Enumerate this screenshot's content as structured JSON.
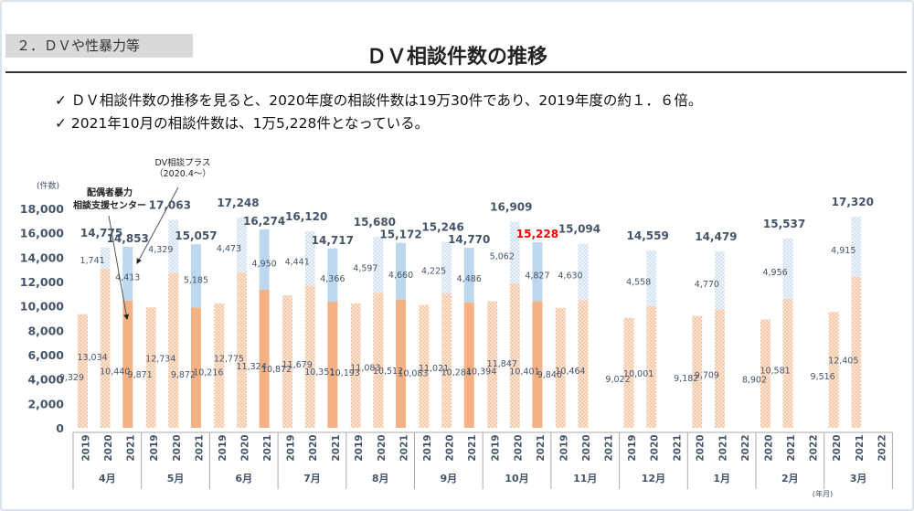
{
  "header": {
    "section": "２．ＤＶや性暴力等",
    "title": "ＤＶ相談件数の推移"
  },
  "bullets": [
    "✓ ＤＶ相談件数の推移を見ると、2020年度の相談件数は19万30件であり、2019年度の約１．６倍。",
    "✓ 2021年10月の相談件数は、1万5,228件となっている。"
  ],
  "colors": {
    "center": "#f4b183",
    "plus": "#bdd7ee",
    "highlight": "#ff0000",
    "text": "#44546a"
  },
  "chart_data": {
    "type": "bar",
    "stacked": true,
    "ylabel": "(件数)",
    "xlabel": "(年月)",
    "ylim": [
      0,
      18000
    ],
    "yticks": [
      "0",
      "2,000",
      "4,000",
      "6,000",
      "8,000",
      "10,000",
      "12,000",
      "14,000",
      "16,000",
      "18,000"
    ],
    "annotations": {
      "center": "配偶者暴力\n相談支援センター",
      "plus": "DV相談プラス\n（2020.4～）"
    },
    "series_keys": [
      "center",
      "plus"
    ],
    "months": [
      {
        "label": "4月",
        "years": [
          "2019",
          "2020",
          "2021"
        ],
        "bars": [
          {
            "center": 9329
          },
          {
            "center": 13034,
            "plus": 1741,
            "total": "14,775"
          },
          {
            "center": 10440,
            "plus": 4413,
            "total": "14,853",
            "solid": true
          }
        ]
      },
      {
        "label": "5月",
        "years": [
          "2019",
          "2020",
          "2021"
        ],
        "bars": [
          {
            "center": 9871
          },
          {
            "center": 12734,
            "plus": 4329,
            "total": "17,063"
          },
          {
            "center": 9872,
            "plus": 5185,
            "total": "15,057",
            "solid": true
          }
        ]
      },
      {
        "label": "6月",
        "years": [
          "2019",
          "2020",
          "2021"
        ],
        "bars": [
          {
            "center": 10216
          },
          {
            "center": 12775,
            "plus": 4473,
            "total": "17,248"
          },
          {
            "center": 11324,
            "plus": 4950,
            "total": "16,274",
            "solid": true
          }
        ]
      },
      {
        "label": "7月",
        "years": [
          "2019",
          "2020",
          "2021"
        ],
        "bars": [
          {
            "center": 10872
          },
          {
            "center": 11679,
            "plus": 4441,
            "total": "16,120"
          },
          {
            "center": 10351,
            "plus": 4366,
            "total": "14,717",
            "solid": true
          }
        ]
      },
      {
        "label": "8月",
        "years": [
          "2019",
          "2020",
          "2021"
        ],
        "bars": [
          {
            "center": 10193
          },
          {
            "center": 11083,
            "plus": 4597,
            "total": "15,680"
          },
          {
            "center": 10512,
            "plus": 4660,
            "total": "15,172",
            "solid": true
          }
        ]
      },
      {
        "label": "9月",
        "years": [
          "2019",
          "2020",
          "2021"
        ],
        "bars": [
          {
            "center": 10083
          },
          {
            "center": 11021,
            "plus": 4225,
            "total": "15,246"
          },
          {
            "center": 10284,
            "plus": 4486,
            "total": "14,770",
            "solid": true
          }
        ]
      },
      {
        "label": "10月",
        "years": [
          "2019",
          "2020",
          "2021"
        ],
        "bars": [
          {
            "center": 10394
          },
          {
            "center": 11847,
            "plus": 5062,
            "total": "16,909"
          },
          {
            "center": 10401,
            "plus": 4827,
            "total": "15,228",
            "solid": true,
            "highlight": true
          }
        ]
      },
      {
        "label": "11月",
        "years": [
          "2019",
          "2020",
          "2021"
        ],
        "bars": [
          {
            "center": 9840
          },
          {
            "center": 10464,
            "plus": 4630,
            "total": "15,094"
          },
          null
        ]
      },
      {
        "label": "12月",
        "years": [
          "2019",
          "2020",
          "2021"
        ],
        "bars": [
          {
            "center": 9022
          },
          {
            "center": 10001,
            "plus": 4558,
            "total": "14,559"
          },
          null
        ]
      },
      {
        "label": "1月",
        "years": [
          "2020",
          "2021",
          "2022"
        ],
        "bars": [
          {
            "center": 9182
          },
          {
            "center": 9709,
            "plus": 4770,
            "total": "14,479"
          },
          null
        ]
      },
      {
        "label": "2月",
        "years": [
          "2020",
          "2021",
          "2022"
        ],
        "bars": [
          {
            "center": 8902
          },
          {
            "center": 10581,
            "plus": 4956,
            "total": "15,537"
          },
          null
        ]
      },
      {
        "label": "3月",
        "years": [
          "2020",
          "2021",
          "2022"
        ],
        "bars": [
          {
            "center": 9516
          },
          {
            "center": 12405,
            "plus": 4915,
            "total": "17,320"
          },
          null
        ]
      }
    ]
  }
}
